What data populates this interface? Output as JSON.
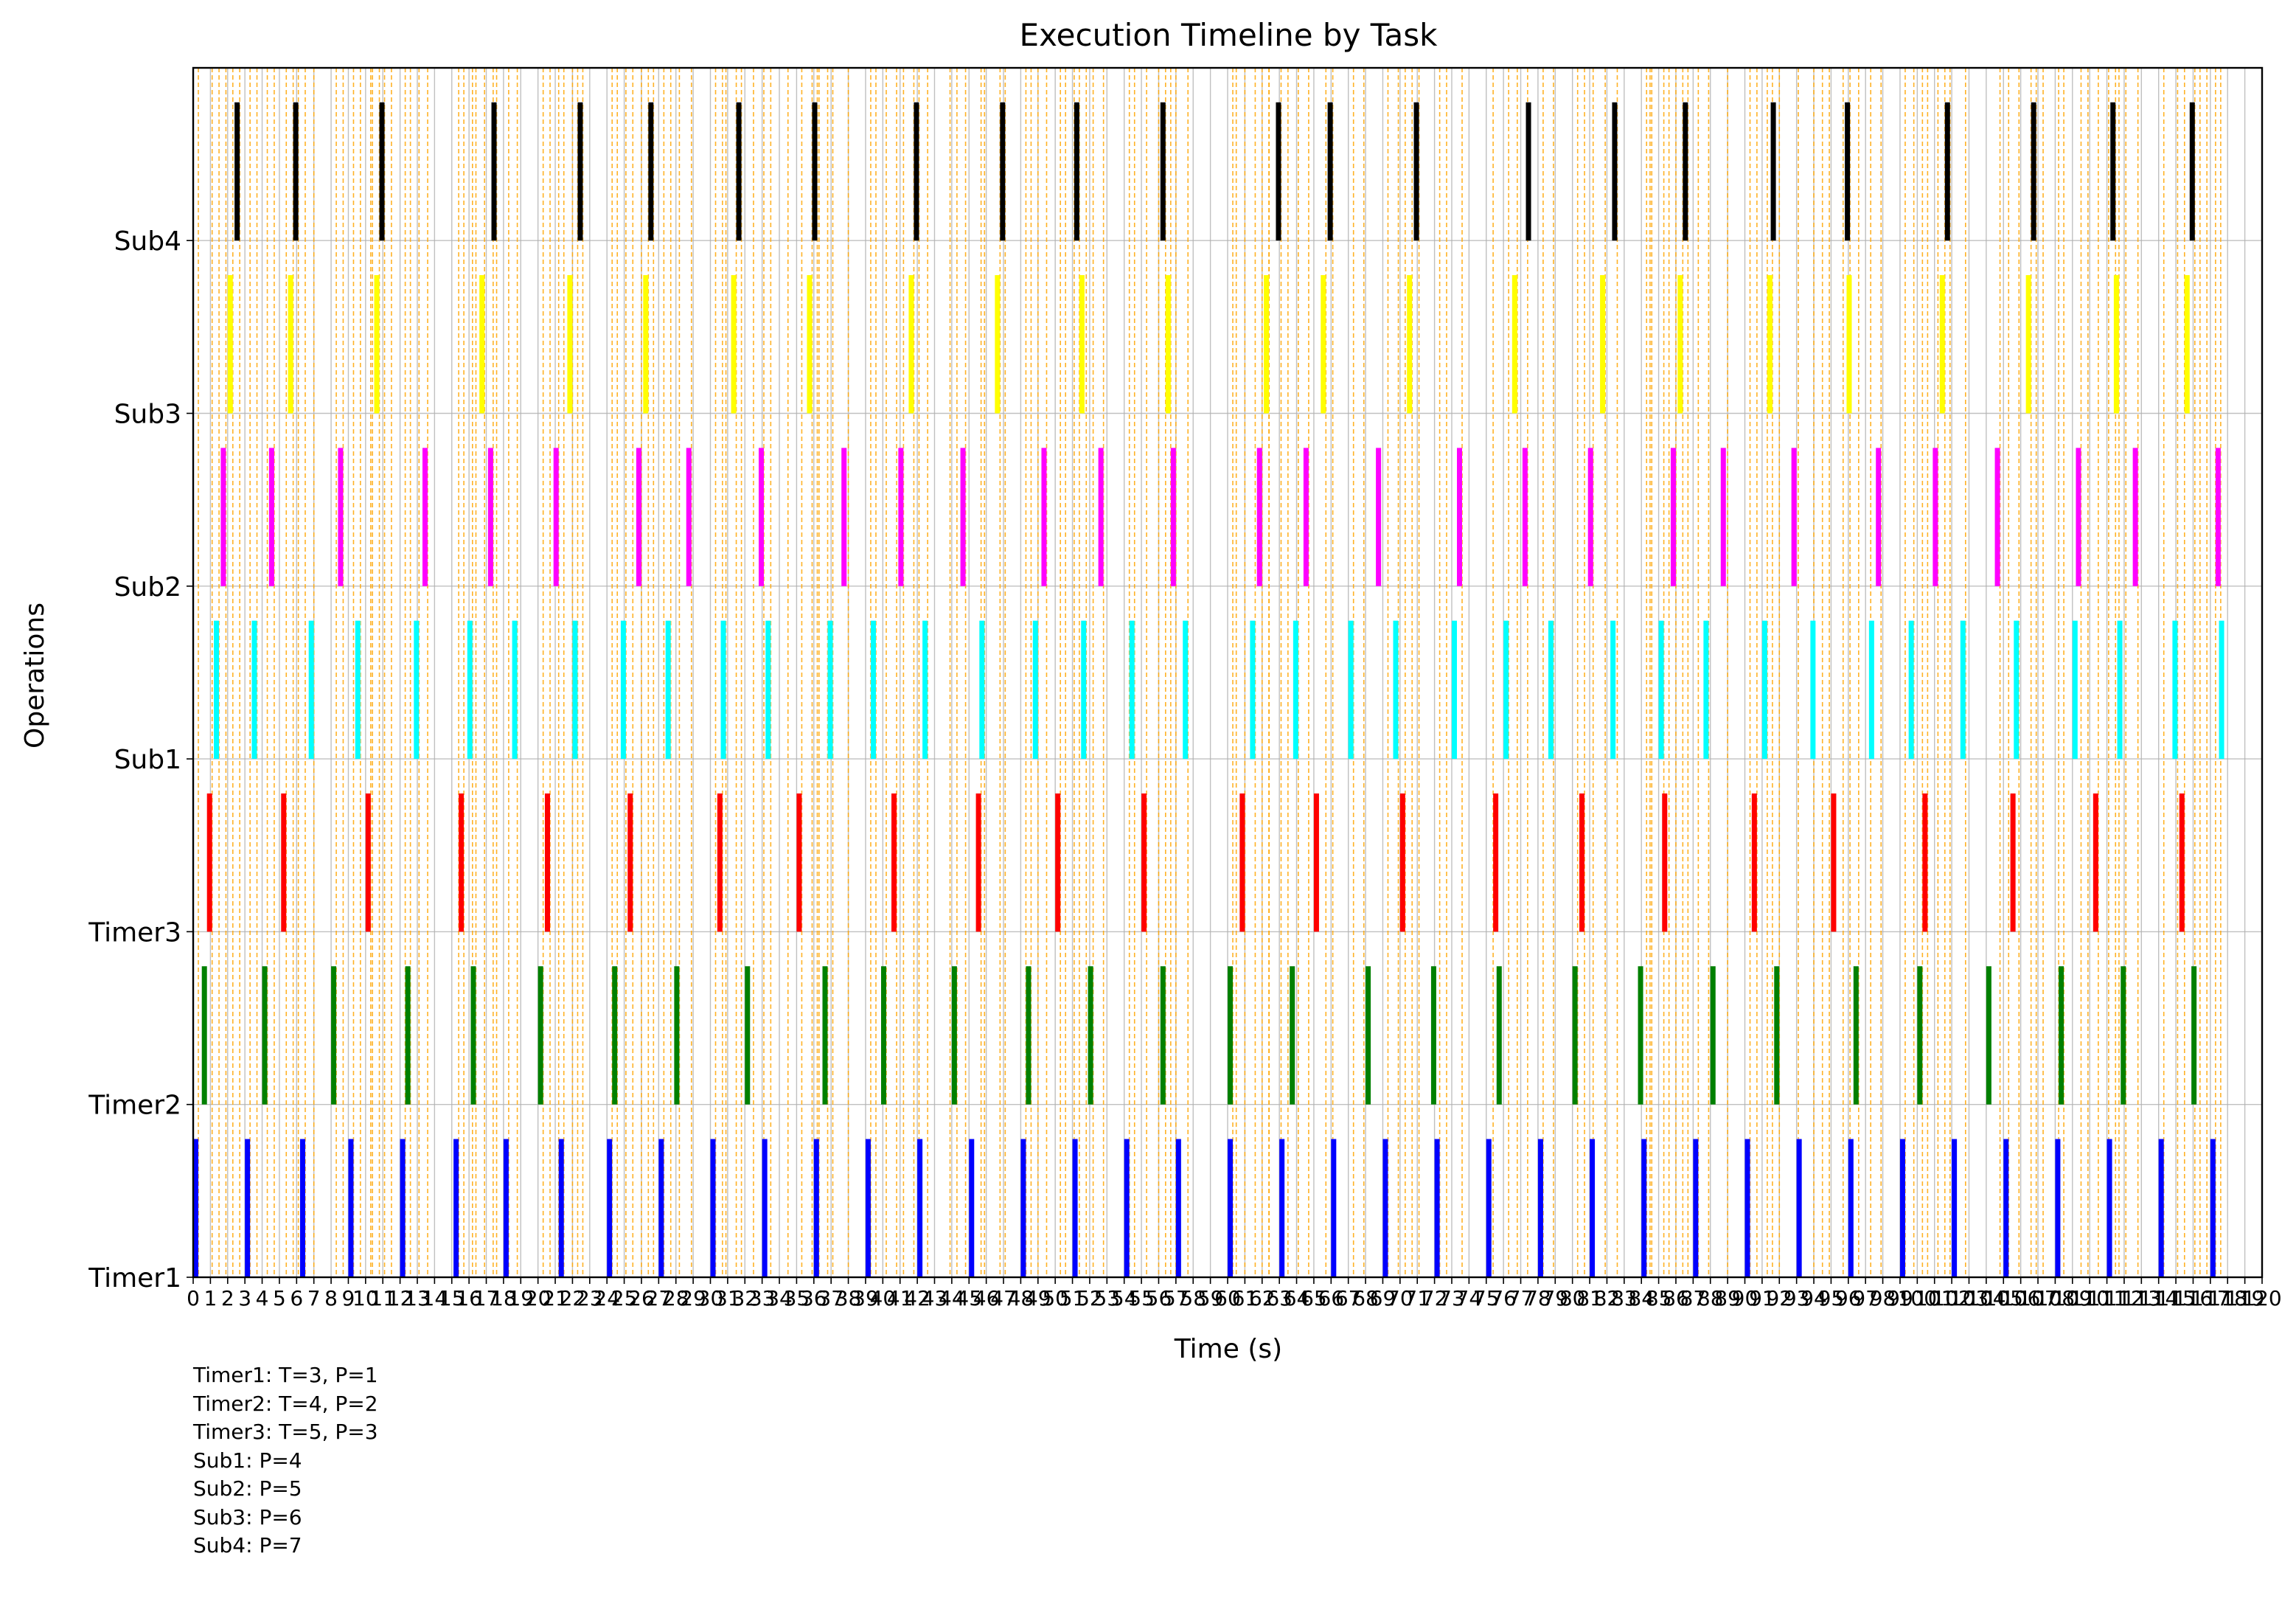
{
  "chart_data": {
    "type": "timeline",
    "title": "Execution Timeline by Task",
    "xlabel": "Time (s)",
    "ylabel": "Operations",
    "xlim": [
      0,
      120
    ],
    "x_ticks": [
      0,
      1,
      2,
      3,
      4,
      5,
      6,
      7,
      8,
      9,
      10,
      11,
      12,
      13,
      14,
      15,
      16,
      17,
      18,
      19,
      20,
      21,
      22,
      23,
      24,
      25,
      26,
      27,
      28,
      29,
      30,
      31,
      32,
      33,
      34,
      35,
      36,
      37,
      38,
      39,
      40,
      41,
      42,
      43,
      44,
      45,
      46,
      47,
      48,
      49,
      50,
      51,
      52,
      53,
      54,
      55,
      56,
      57,
      58,
      59,
      60,
      61,
      62,
      63,
      64,
      65,
      66,
      67,
      68,
      69,
      70,
      71,
      72,
      73,
      74,
      75,
      76,
      77,
      78,
      79,
      80,
      81,
      82,
      83,
      84,
      85,
      86,
      87,
      88,
      89,
      90,
      91,
      92,
      93,
      94,
      95,
      96,
      97,
      98,
      99,
      100,
      101,
      102,
      103,
      104,
      105,
      106,
      107,
      108,
      109,
      110,
      111,
      112,
      113,
      114,
      115,
      116,
      117,
      118,
      119,
      120
    ],
    "categories": [
      "Timer1",
      "Timer2",
      "Timer3",
      "Sub1",
      "Sub2",
      "Sub3",
      "Sub4"
    ],
    "grid": true,
    "bar_width": 0.3,
    "series": [
      {
        "name": "Timer1",
        "color": "#0000ff",
        "starts": [
          0.0,
          3.0,
          6.2,
          9.0,
          12.0,
          15.1,
          18.0,
          21.2,
          24.0,
          27.0,
          30.0,
          33.0,
          36.0,
          39.0,
          42.0,
          45.0,
          48.0,
          51.0,
          54.0,
          57.0,
          60.0,
          63.0,
          66.0,
          69.0,
          72.0,
          75.0,
          78.0,
          81.0,
          84.0,
          87.0,
          90.0,
          93.0,
          96.0,
          99.0,
          102.0,
          105.0,
          108.0,
          111.0,
          114.0,
          117.0
        ]
      },
      {
        "name": "Timer2",
        "color": "#008000",
        "starts": [
          0.5,
          4.0,
          8.0,
          12.3,
          16.1,
          20.0,
          24.3,
          27.9,
          32.0,
          36.5,
          39.9,
          44.0,
          48.3,
          51.9,
          56.1,
          60.0,
          63.6,
          68.0,
          71.8,
          75.6,
          80.0,
          83.8,
          88.0,
          91.7,
          96.3,
          100.0,
          104.0,
          108.2,
          111.8,
          115.9
        ]
      },
      {
        "name": "Timer3",
        "color": "#ff0000",
        "starts": [
          0.8,
          5.1,
          10.0,
          15.4,
          20.4,
          25.2,
          30.4,
          35.0,
          40.5,
          45.4,
          50.0,
          55.0,
          60.7,
          65.0,
          70.0,
          75.4,
          80.4,
          85.2,
          90.4,
          95.0,
          100.3,
          105.4,
          110.2,
          115.2
        ]
      },
      {
        "name": "Sub1",
        "color": "#00ffff",
        "starts": [
          1.2,
          3.4,
          6.7,
          9.4,
          12.8,
          15.9,
          18.5,
          22.0,
          24.8,
          27.4,
          30.6,
          33.2,
          36.8,
          39.3,
          42.3,
          45.6,
          48.7,
          51.5,
          54.3,
          57.4,
          61.3,
          63.8,
          67.0,
          69.6,
          73.0,
          76.0,
          78.6,
          82.2,
          85.0,
          87.6,
          91.0,
          93.8,
          97.2,
          99.5,
          102.5,
          105.6,
          109.0,
          111.6,
          114.8,
          117.5
        ]
      },
      {
        "name": "Sub2",
        "color": "#ff00ff",
        "starts": [
          1.6,
          4.4,
          8.4,
          13.3,
          17.1,
          20.9,
          25.7,
          28.6,
          32.8,
          37.6,
          40.9,
          44.5,
          49.2,
          52.5,
          56.7,
          61.7,
          64.4,
          68.6,
          73.3,
          77.1,
          80.9,
          85.7,
          88.6,
          92.7,
          97.6,
          100.9,
          104.5,
          109.2,
          112.5,
          117.3
        ]
      },
      {
        "name": "Sub3",
        "color": "#ffff00",
        "starts": [
          2.0,
          5.5,
          10.5,
          16.6,
          21.7,
          26.1,
          31.2,
          35.6,
          41.5,
          46.5,
          51.4,
          56.4,
          62.1,
          65.4,
          70.4,
          76.5,
          81.6,
          86.1,
          91.3,
          95.9,
          101.3,
          106.3,
          111.4,
          115.5
        ]
      },
      {
        "name": "Sub4",
        "color": "#000000",
        "starts": [
          2.4,
          5.8,
          10.8,
          17.3,
          22.3,
          26.4,
          31.5,
          35.9,
          41.8,
          46.8,
          51.1,
          56.1,
          62.8,
          65.8,
          70.8,
          77.3,
          82.3,
          86.4,
          91.5,
          95.8,
          101.6,
          106.6,
          111.2,
          115.8
        ]
      }
    ],
    "reference_lines": {
      "color": "#ffa500",
      "style": "dashed",
      "x": [
        0.3,
        1.1,
        1.5,
        1.9,
        2.3,
        2.7,
        3.3,
        3.7,
        4.3,
        4.7,
        5.4,
        5.8,
        6.1,
        6.5,
        7.0,
        8.3,
        8.7,
        9.3,
        9.7,
        10.3,
        10.4,
        10.8,
        11.1,
        11.5,
        12.3,
        12.6,
        13.1,
        13.6,
        15.4,
        15.7,
        16.2,
        16.4,
        16.9,
        17.4,
        17.6,
        18.3,
        18.8,
        20.3,
        20.7,
        21.2,
        21.5,
        22.0,
        22.3,
        22.6,
        24.3,
        24.6,
        25.1,
        25.5,
        26.0,
        26.4,
        26.7,
        27.3,
        27.7,
        28.2,
        28.9,
        30.3,
        30.7,
        30.9,
        31.5,
        31.8,
        32.5,
        33.1,
        33.5,
        34.5,
        35.3,
        35.9,
        36.2,
        36.3,
        36.8,
        37.1,
        38.0,
        39.3,
        39.6,
        40.2,
        40.8,
        41.2,
        41.8,
        42.1,
        42.6,
        43.9,
        44.3,
        44.8,
        45.7,
        45.9,
        46.8,
        47.1,
        48.3,
        48.6,
        49.0,
        49.5,
        50.3,
        50.6,
        51.1,
        51.4,
        51.8,
        52.2,
        52.8,
        54.3,
        54.6,
        55.3,
        56.0,
        56.4,
        56.7,
        57.0,
        57.7,
        60.3,
        60.5,
        61.0,
        61.6,
        62.0,
        62.4,
        62.4,
        63.1,
        63.5,
        64.1,
        64.7,
        65.7,
        66.1,
        67.3,
        67.9,
        69.3,
        69.9,
        70.3,
        70.7,
        71.1,
        72.3,
        72.7,
        73.6,
        75.4,
        76.3,
        76.8,
        77.4,
        78.3,
        78.9,
        80.3,
        80.7,
        81.2,
        81.9,
        82.6,
        84.3,
        84.5,
        84.6,
        85.3,
        85.6,
        86.0,
        86.4,
        86.7,
        87.3,
        87.9,
        89.0,
        90.3,
        90.7,
        91.3,
        91.6,
        92.0,
        93.1,
        94.0,
        94.5,
        94.9,
        95.7,
        96.1,
        96.6,
        97.3,
        97.9,
        99.3,
        99.8,
        100.3,
        100.6,
        101.2,
        101.6,
        101.9,
        102.8,
        104.8,
        105.3,
        105.9,
        106.6,
        106.9,
        107.3,
        108.2,
        108.5,
        109.5,
        109.9,
        110.5,
        111.1,
        111.5,
        111.7,
        112.1,
        112.8,
        114.3,
        115.1,
        115.5,
        116.1,
        116.4,
        116.8,
        117.3,
        117.6
      ]
    },
    "annotations": [
      "Timer1: T=3, P=1",
      "Timer2: T=4, P=2",
      "Timer3: T=5, P=3",
      "Sub1: P=4",
      "Sub2: P=5",
      "Sub3: P=6",
      "Sub4: P=7"
    ]
  }
}
